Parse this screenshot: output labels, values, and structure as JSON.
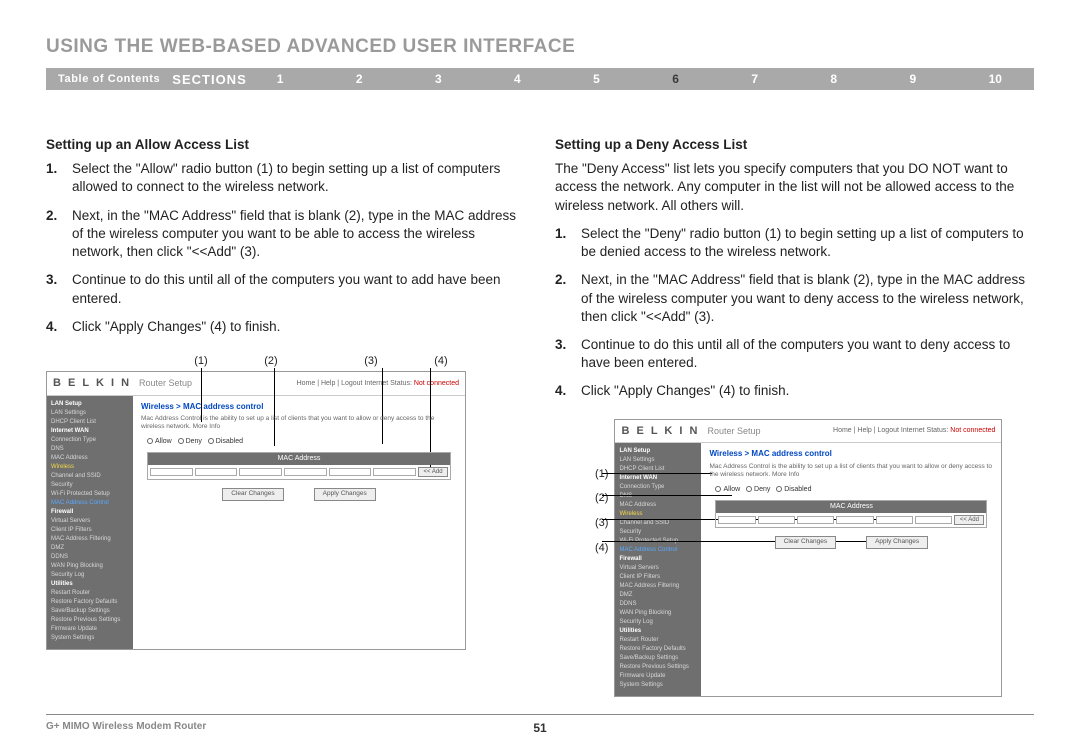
{
  "page": {
    "title": "USING THE WEB-BASED ADVANCED USER INTERFACE",
    "toc_label": "Table of Contents",
    "sections_label": "SECTIONS",
    "section_numbers": [
      "1",
      "2",
      "3",
      "4",
      "5",
      "6",
      "7",
      "8",
      "9",
      "10"
    ],
    "active_section": "6",
    "footer_product": "G+ MIMO Wireless Modem Router",
    "page_number": "51"
  },
  "colors": {
    "title_gray": "#9a9a9a",
    "navbar_bg": "#a9a9a9",
    "active_num": "#3a3a3a",
    "sidebar_bg": "#6f6f6f",
    "link_blue": "#0047c2",
    "highlight_yellow": "#f5d94a",
    "selected_blue": "#5aa9ff",
    "not_connected": "#c00"
  },
  "left": {
    "heading": "Setting up an Allow Access List",
    "steps": [
      "Select the \"Allow\" radio button (1) to begin setting up a list of computers allowed to connect to the wireless network.",
      "Next, in the \"MAC Address\" field that is blank (2), type in the MAC address of the wireless computer you want to be able to access the wireless network, then click \"<<Add\" (3).",
      "Continue to do this until all of the computers you want to add have been entered.",
      "Click \"Apply Changes\" (4) to finish."
    ],
    "callouts": [
      "(1)",
      "(2)",
      "(3)",
      "(4)"
    ]
  },
  "right": {
    "heading": "Setting up a Deny Access List",
    "intro": "The \"Deny Access\" list lets you specify computers that you DO NOT want to access the network. Any computer in the list will not be allowed access to the wireless network. All others will.",
    "steps": [
      "Select the \"Deny\" radio button (1) to begin setting up a list of computers to be denied access to the wireless network.",
      "Next, in the \"MAC Address\" field that is blank (2), type in the MAC address of the wireless computer you want to deny access to the wireless network, then click \"<<Add\" (3).",
      "Continue to do this until all of the computers you want to deny access to have been entered.",
      "Click \"Apply Changes\" (4) to finish."
    ],
    "callouts": [
      "(1)",
      "(2)",
      "(3)",
      "(4)"
    ]
  },
  "router": {
    "brand": "B E L K I N",
    "setup": "Router Setup",
    "header_links": "Home | Help | Logout   Internet Status:",
    "not_connected": "Not connected",
    "breadcrumb": "Wireless > MAC address control",
    "desc": "Mac Address Control is the ability to set up a list of clients that you want to allow or deny access to the wireless network. More Info",
    "radio_allow": "Allow",
    "radio_deny": "Deny",
    "radio_disabled": "Disabled",
    "mac_header": "MAC Address",
    "add_btn": "<< Add",
    "clear_btn": "Clear Changes",
    "apply_btn": "Apply Changes",
    "sidebar": {
      "groups": [
        {
          "hdr": "LAN Setup",
          "items": [
            "LAN Settings",
            "DHCP Client List"
          ]
        },
        {
          "hdr": "Internet WAN",
          "items": [
            "Connection Type",
            "DNS",
            "MAC Address"
          ]
        },
        {
          "hdr_hl": "Wireless",
          "items": [
            "Channel and SSID",
            "Security",
            "Wi-Fi Protected Setup"
          ],
          "sel": "MAC Address Control"
        },
        {
          "hdr": "Firewall",
          "items": [
            "Virtual Servers",
            "Client IP Filters",
            "MAC Address Filtering",
            "DMZ",
            "DDNS",
            "WAN Ping Blocking",
            "Security Log"
          ]
        },
        {
          "hdr": "Utilities",
          "items": [
            "Restart Router",
            "Restore Factory Defaults",
            "Save/Backup Settings",
            "Restore Previous Settings",
            "Firmware Update",
            "System Settings"
          ]
        }
      ]
    }
  }
}
